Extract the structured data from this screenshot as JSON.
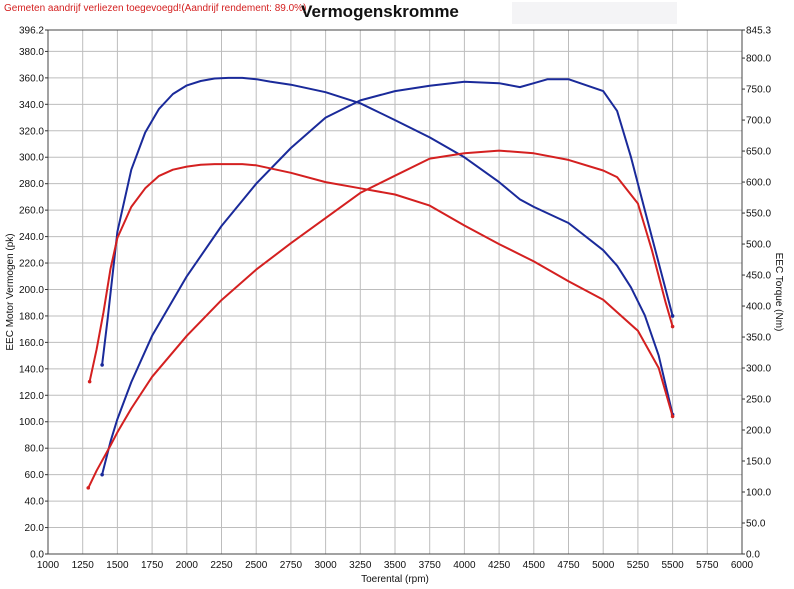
{
  "header": {
    "note": "Gemeten aandrijf verliezen toegevoegd!(Aandrijf rendement: 89.0%)",
    "title": "Vermogenskromme"
  },
  "chart_data": {
    "type": "line",
    "title": "Vermogenskromme",
    "xlabel": "Toerental (rpm)",
    "ylabel_left": "EEC Motor Vermogen (pk)",
    "ylabel_right": "EEC Torque (Nm)",
    "xlim": [
      1000,
      6000
    ],
    "ylim_left": [
      0,
      396.2
    ],
    "ylim_right": [
      0,
      845.3
    ],
    "grid": true,
    "x_ticks": [
      "1000",
      "1250",
      "1500",
      "1750",
      "2000",
      "2250",
      "2500",
      "2750",
      "3000",
      "3250",
      "3500",
      "3750",
      "4000",
      "4250",
      "4500",
      "4750",
      "5000",
      "5250",
      "5500",
      "5750",
      "6000"
    ],
    "y_left_ticks": [
      "0.0",
      "20.0",
      "40.0",
      "60.0",
      "80.0",
      "100.0",
      "120.0",
      "140.0",
      "160.0",
      "180.0",
      "200.0",
      "220.0",
      "240.0",
      "260.0",
      "280.0",
      "300.0",
      "320.0",
      "340.0",
      "360.0",
      "380.0",
      "396.2"
    ],
    "y_right_ticks": [
      "0.0",
      "50.0",
      "100.0",
      "150.0",
      "200.0",
      "250.0",
      "300.0",
      "350.0",
      "400.0",
      "450.0",
      "500.0",
      "550.0",
      "600.0",
      "650.0",
      "700.0",
      "750.0",
      "800.0",
      "845.3"
    ],
    "series": [
      {
        "color": "#1a2a9a",
        "axis": "right",
        "points": [
          [
            1390,
            305
          ],
          [
            1430,
            380
          ],
          [
            1500,
            520
          ],
          [
            1600,
            620
          ],
          [
            1700,
            680
          ],
          [
            1800,
            718
          ],
          [
            1900,
            742
          ],
          [
            2000,
            756
          ],
          [
            2100,
            763
          ],
          [
            2200,
            767
          ],
          [
            2300,
            768
          ],
          [
            2400,
            768
          ],
          [
            2500,
            766
          ],
          [
            2600,
            762
          ],
          [
            2750,
            757
          ],
          [
            3000,
            745
          ],
          [
            3250,
            727
          ],
          [
            3500,
            700
          ],
          [
            3750,
            672
          ],
          [
            4000,
            640
          ],
          [
            4250,
            600
          ],
          [
            4400,
            572
          ],
          [
            4500,
            560
          ],
          [
            4750,
            534
          ],
          [
            5000,
            490
          ],
          [
            5100,
            465
          ],
          [
            5200,
            430
          ],
          [
            5300,
            385
          ],
          [
            5400,
            320
          ],
          [
            5500,
            225
          ]
        ]
      },
      {
        "color": "#1a2a9a",
        "axis": "left",
        "points": [
          [
            1390,
            60
          ],
          [
            1450,
            85
          ],
          [
            1500,
            102
          ],
          [
            1600,
            130
          ],
          [
            1750,
            165
          ],
          [
            2000,
            210
          ],
          [
            2250,
            248
          ],
          [
            2500,
            280
          ],
          [
            2750,
            307
          ],
          [
            3000,
            330
          ],
          [
            3250,
            343
          ],
          [
            3500,
            350
          ],
          [
            3750,
            354
          ],
          [
            4000,
            357
          ],
          [
            4250,
            356
          ],
          [
            4400,
            353
          ],
          [
            4500,
            356
          ],
          [
            4600,
            359
          ],
          [
            4750,
            359
          ],
          [
            5000,
            350
          ],
          [
            5100,
            335
          ],
          [
            5200,
            300
          ],
          [
            5300,
            260
          ],
          [
            5400,
            220
          ],
          [
            5500,
            180
          ]
        ]
      },
      {
        "color": "#d42020",
        "axis": "right",
        "points": [
          [
            1300,
            278
          ],
          [
            1350,
            330
          ],
          [
            1400,
            390
          ],
          [
            1450,
            460
          ],
          [
            1500,
            510
          ],
          [
            1600,
            560
          ],
          [
            1700,
            590
          ],
          [
            1800,
            610
          ],
          [
            1900,
            620
          ],
          [
            2000,
            625
          ],
          [
            2100,
            628
          ],
          [
            2200,
            629
          ],
          [
            2300,
            629
          ],
          [
            2400,
            629
          ],
          [
            2500,
            627
          ],
          [
            2750,
            615
          ],
          [
            3000,
            600
          ],
          [
            3250,
            590
          ],
          [
            3500,
            580
          ],
          [
            3750,
            562
          ],
          [
            4000,
            530
          ],
          [
            4250,
            500
          ],
          [
            4500,
            472
          ],
          [
            4750,
            440
          ],
          [
            5000,
            410
          ],
          [
            5250,
            360
          ],
          [
            5400,
            300
          ],
          [
            5500,
            222
          ]
        ]
      },
      {
        "color": "#d42020",
        "axis": "left",
        "points": [
          [
            1290,
            50
          ],
          [
            1350,
            63
          ],
          [
            1450,
            82
          ],
          [
            1500,
            92
          ],
          [
            1600,
            110
          ],
          [
            1750,
            134
          ],
          [
            2000,
            165
          ],
          [
            2250,
            192
          ],
          [
            2500,
            215
          ],
          [
            2750,
            235
          ],
          [
            3000,
            254
          ],
          [
            3250,
            273
          ],
          [
            3500,
            286
          ],
          [
            3750,
            299
          ],
          [
            4000,
            303
          ],
          [
            4250,
            305
          ],
          [
            4500,
            303
          ],
          [
            4750,
            298
          ],
          [
            5000,
            290
          ],
          [
            5100,
            285
          ],
          [
            5250,
            265
          ],
          [
            5350,
            230
          ],
          [
            5450,
            190
          ],
          [
            5500,
            172
          ]
        ]
      }
    ],
    "legend": "none"
  },
  "colors": {
    "blue": "#1a2a9a",
    "red": "#d42020",
    "grid": "#bdbdbd"
  }
}
